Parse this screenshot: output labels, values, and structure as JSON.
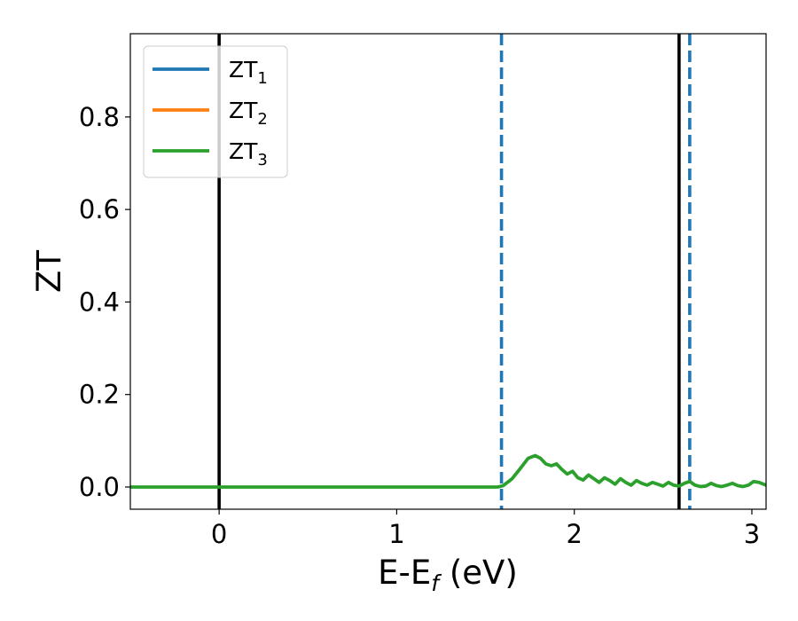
{
  "chart_data": {
    "type": "line",
    "xlabel": "E-E",
    "xlabel_sub": "f",
    "xlabel_unit": " (eV)",
    "ylabel": "ZT",
    "xlim": [
      -0.5,
      3.08
    ],
    "ylim": [
      -0.048,
      0.98
    ],
    "xticks": [
      0,
      1,
      2,
      3
    ],
    "xtick_labels": [
      "0",
      "1",
      "2",
      "3"
    ],
    "yticks": [
      0.0,
      0.2,
      0.4,
      0.6,
      0.8
    ],
    "ytick_labels": [
      "0.0",
      "0.2",
      "0.4",
      "0.6",
      "0.8"
    ],
    "grid": false,
    "legend_position": "top-left",
    "series": [
      {
        "name": "ZT",
        "sub": "1",
        "color": "#1f77b4",
        "x": [],
        "y": []
      },
      {
        "name": "ZT",
        "sub": "2",
        "color": "#ff7f0e",
        "x": [],
        "y": []
      },
      {
        "name": "ZT",
        "sub": "3",
        "color": "#2ca02c",
        "x": [
          -0.5,
          1.5,
          1.57,
          1.6,
          1.65,
          1.7,
          1.74,
          1.78,
          1.81,
          1.84,
          1.87,
          1.9,
          1.93,
          1.96,
          1.99,
          2.02,
          2.05,
          2.08,
          2.11,
          2.14,
          2.17,
          2.2,
          2.23,
          2.26,
          2.29,
          2.32,
          2.35,
          2.38,
          2.41,
          2.44,
          2.47,
          2.5,
          2.53,
          2.56,
          2.59,
          2.62,
          2.65,
          2.68,
          2.71,
          2.74,
          2.77,
          2.8,
          2.83,
          2.86,
          2.89,
          2.92,
          2.95,
          2.98,
          3.01,
          3.04,
          3.08
        ],
        "y": [
          0.0,
          0.0,
          0.0,
          0.003,
          0.018,
          0.042,
          0.062,
          0.068,
          0.062,
          0.05,
          0.046,
          0.05,
          0.038,
          0.028,
          0.034,
          0.02,
          0.015,
          0.026,
          0.018,
          0.01,
          0.02,
          0.014,
          0.006,
          0.018,
          0.01,
          0.004,
          0.014,
          0.008,
          0.004,
          0.01,
          0.006,
          0.002,
          0.01,
          0.004,
          0.002,
          0.008,
          0.012,
          0.004,
          0.001,
          0.002,
          0.008,
          0.003,
          0.001,
          0.004,
          0.008,
          0.003,
          0.001,
          0.004,
          0.012,
          0.01,
          0.004
        ]
      }
    ],
    "vlines": [
      {
        "x": 0.0,
        "style": "solid",
        "color": "#000000"
      },
      {
        "x": 2.59,
        "style": "solid",
        "color": "#000000"
      },
      {
        "x": 1.59,
        "style": "dashed",
        "color": "#1f77b4"
      },
      {
        "x": 2.65,
        "style": "dashed",
        "color": "#1f77b4"
      }
    ]
  }
}
